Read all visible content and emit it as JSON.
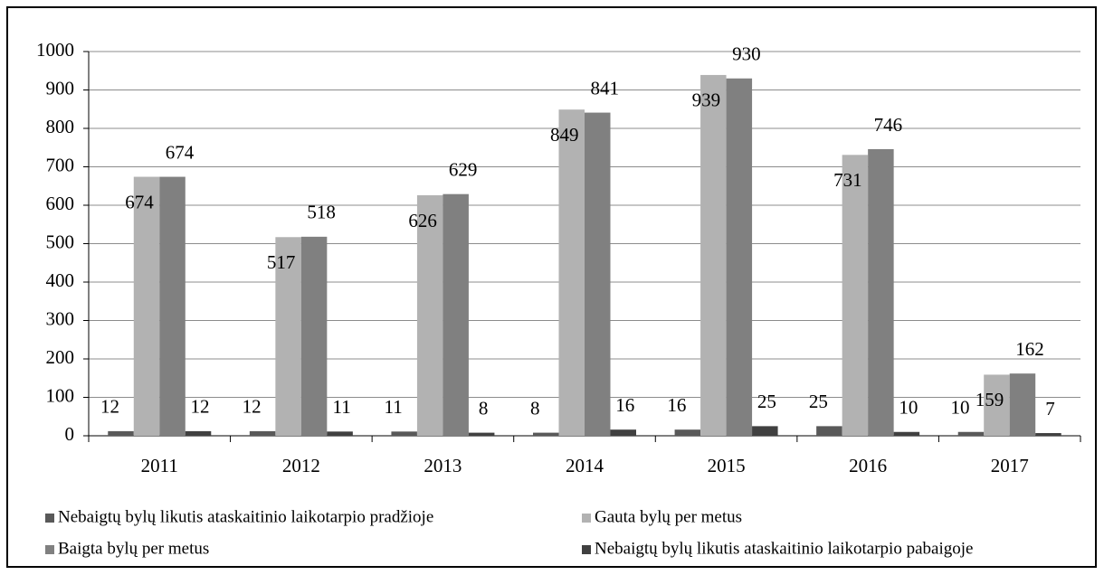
{
  "chart_data": {
    "type": "bar",
    "categories": [
      "2011",
      "2012",
      "2013",
      "2014",
      "2015",
      "2016",
      "2017"
    ],
    "series": [
      {
        "name": "Nebaigtų bylų likutis ataskaitinio laikotarpio pradžioje",
        "color": "#595959",
        "values": [
          12,
          12,
          11,
          8,
          16,
          25,
          10
        ]
      },
      {
        "name": "Gauta bylų per metus",
        "color": "#b2b2b2",
        "values": [
          674,
          517,
          626,
          849,
          939,
          731,
          159
        ]
      },
      {
        "name": "Baigta bylų per metus",
        "color": "#808080",
        "values": [
          674,
          518,
          629,
          841,
          930,
          746,
          162
        ]
      },
      {
        "name": "Nebaigtų bylų likutis ataskaitinio laikotarpio pabaigoje",
        "color": "#404040",
        "values": [
          12,
          11,
          8,
          16,
          25,
          10,
          7
        ]
      }
    ],
    "ylim": [
      0,
      1000
    ],
    "yticks": [
      0,
      100,
      200,
      300,
      400,
      500,
      600,
      700,
      800,
      900,
      1000
    ],
    "grid": true,
    "legend": "bottom"
  }
}
